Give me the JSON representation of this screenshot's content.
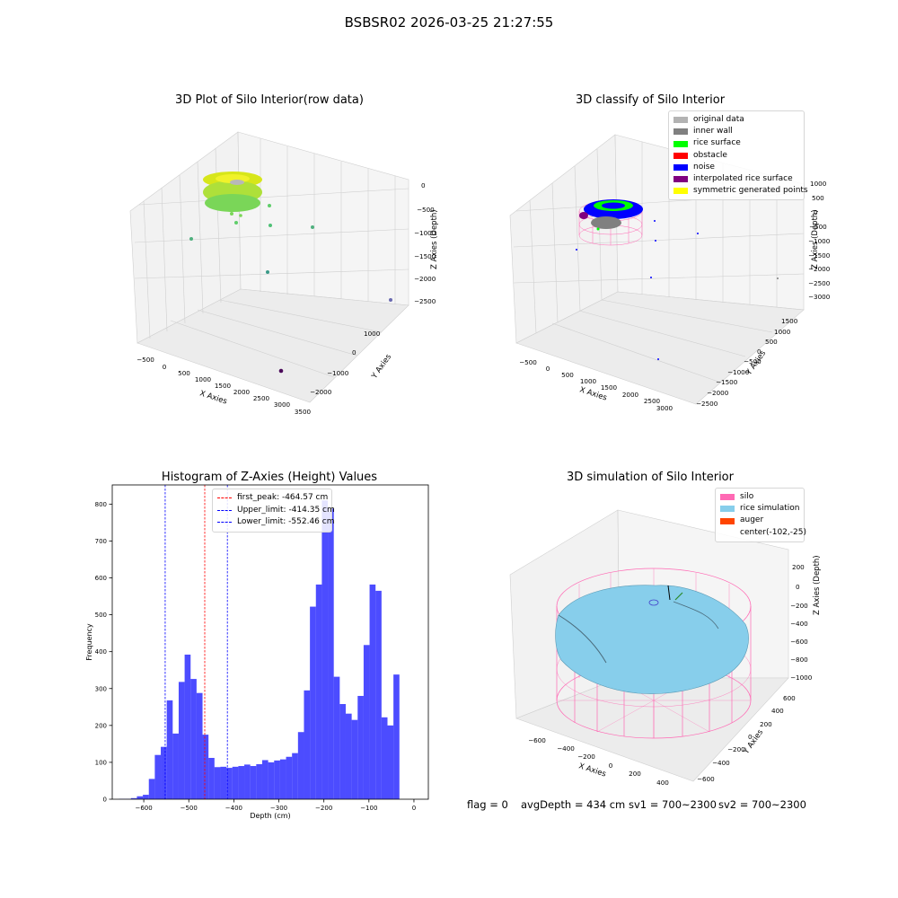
{
  "figure": {
    "suptitle": "BSBSR02 2026-03-25 21:27:55"
  },
  "panels": {
    "raw": {
      "title": "3D Plot of Silo Interior(row data)",
      "xlabel": "X Axies",
      "ylabel": "Y Axies",
      "zlabel": "Z Axies (Depth)",
      "xticks": [
        "−500",
        "0",
        "500",
        "1000",
        "1500",
        "2000",
        "2500",
        "3000",
        "3500"
      ],
      "yticks": [
        "1000",
        "0",
        "−1000",
        "−2000"
      ],
      "zticks": [
        "0",
        "−500",
        "−1000",
        "−1500",
        "−2000",
        "−2500"
      ]
    },
    "classify": {
      "title": "3D classify of Silo Interior",
      "xlabel": "X Axies",
      "ylabel": "Y Axies",
      "zlabel": "Z Axies (Depth)",
      "xticks": [
        "−500",
        "0",
        "500",
        "1000",
        "1500",
        "2000",
        "2500",
        "3000"
      ],
      "yticks": [
        "1500",
        "1000",
        "500",
        "0",
        "−500",
        "−1000",
        "−1500",
        "−2000",
        "−2500"
      ],
      "zticks": [
        "1000",
        "500",
        "0",
        "−500",
        "−1000",
        "−1500",
        "−2000",
        "−2500",
        "−3000"
      ],
      "legend": [
        {
          "label": "original data",
          "color": "#b3b3b3"
        },
        {
          "label": "inner wall",
          "color": "#808080"
        },
        {
          "label": "rice surface",
          "color": "#00ff00"
        },
        {
          "label": "obstacle",
          "color": "#ff0000"
        },
        {
          "label": "noise",
          "color": "#0000ff"
        },
        {
          "label": "interpolated rice surface",
          "color": "#800080"
        },
        {
          "label": "symmetric generated points",
          "color": "#ffff00"
        }
      ]
    },
    "simulation": {
      "title": "3D simulation of Silo Interior",
      "xlabel": "X Axies",
      "ylabel": "Y Axies",
      "zlabel": "Z Axies (Depth)",
      "xticks": [
        "−600",
        "−400",
        "−200",
        "0",
        "200",
        "400"
      ],
      "yticks": [
        "600",
        "400",
        "200",
        "0",
        "−200",
        "−400",
        "−600"
      ],
      "zticks": [
        "200",
        "0",
        "−200",
        "−400",
        "−600",
        "−800",
        "−1000"
      ],
      "legend": [
        {
          "label": "silo",
          "color": "#ff69b4"
        },
        {
          "label": "rice simulation",
          "color": "#87ceeb"
        },
        {
          "label": "auger",
          "color": "#ff4500"
        },
        {
          "label": "center(-102,-25)",
          "color": ""
        }
      ]
    }
  },
  "chart_data": {
    "type": "bar",
    "title": "Histogram of Z-Axies (Height) Values",
    "xlabel": "Depth (cm)",
    "ylabel": "Frequency",
    "xlim": [
      -670,
      32
    ],
    "ylim": [
      0,
      852
    ],
    "xticks": [
      -600,
      -500,
      -400,
      -300,
      -200,
      -100,
      0
    ],
    "yticks": [
      0,
      100,
      200,
      300,
      400,
      500,
      600,
      700,
      800
    ],
    "bar_color": "#0000ff",
    "bar_alpha": 0.7,
    "bins": {
      "start": -655,
      "width": 13.25,
      "counts": [
        1,
        1,
        3,
        8,
        12,
        55,
        120,
        142,
        268,
        178,
        318,
        392,
        326,
        288,
        175,
        112,
        87,
        88,
        85,
        88,
        90,
        94,
        90,
        95,
        106,
        100,
        105,
        108,
        115,
        125,
        182,
        295,
        522,
        582,
        810,
        788,
        332,
        258,
        232,
        215,
        280,
        418,
        582,
        565,
        222,
        200,
        338
      ]
    },
    "lines": [
      {
        "label": "first_peak: -464.57 cm",
        "x": -464.57,
        "color": "#ff0000"
      },
      {
        "label": "Upper_limit: -414.35 cm",
        "x": -414.35,
        "color": "#0000ff"
      },
      {
        "label": "Lower_limit: -552.46 cm",
        "x": -552.46,
        "color": "#0000ff"
      }
    ]
  },
  "footer": {
    "flag": "flag = 0",
    "avg_depth": "avgDepth = 434 cm",
    "sv1": "sv1 = 700~2300",
    "sv2": "sv2 = 700~2300"
  }
}
